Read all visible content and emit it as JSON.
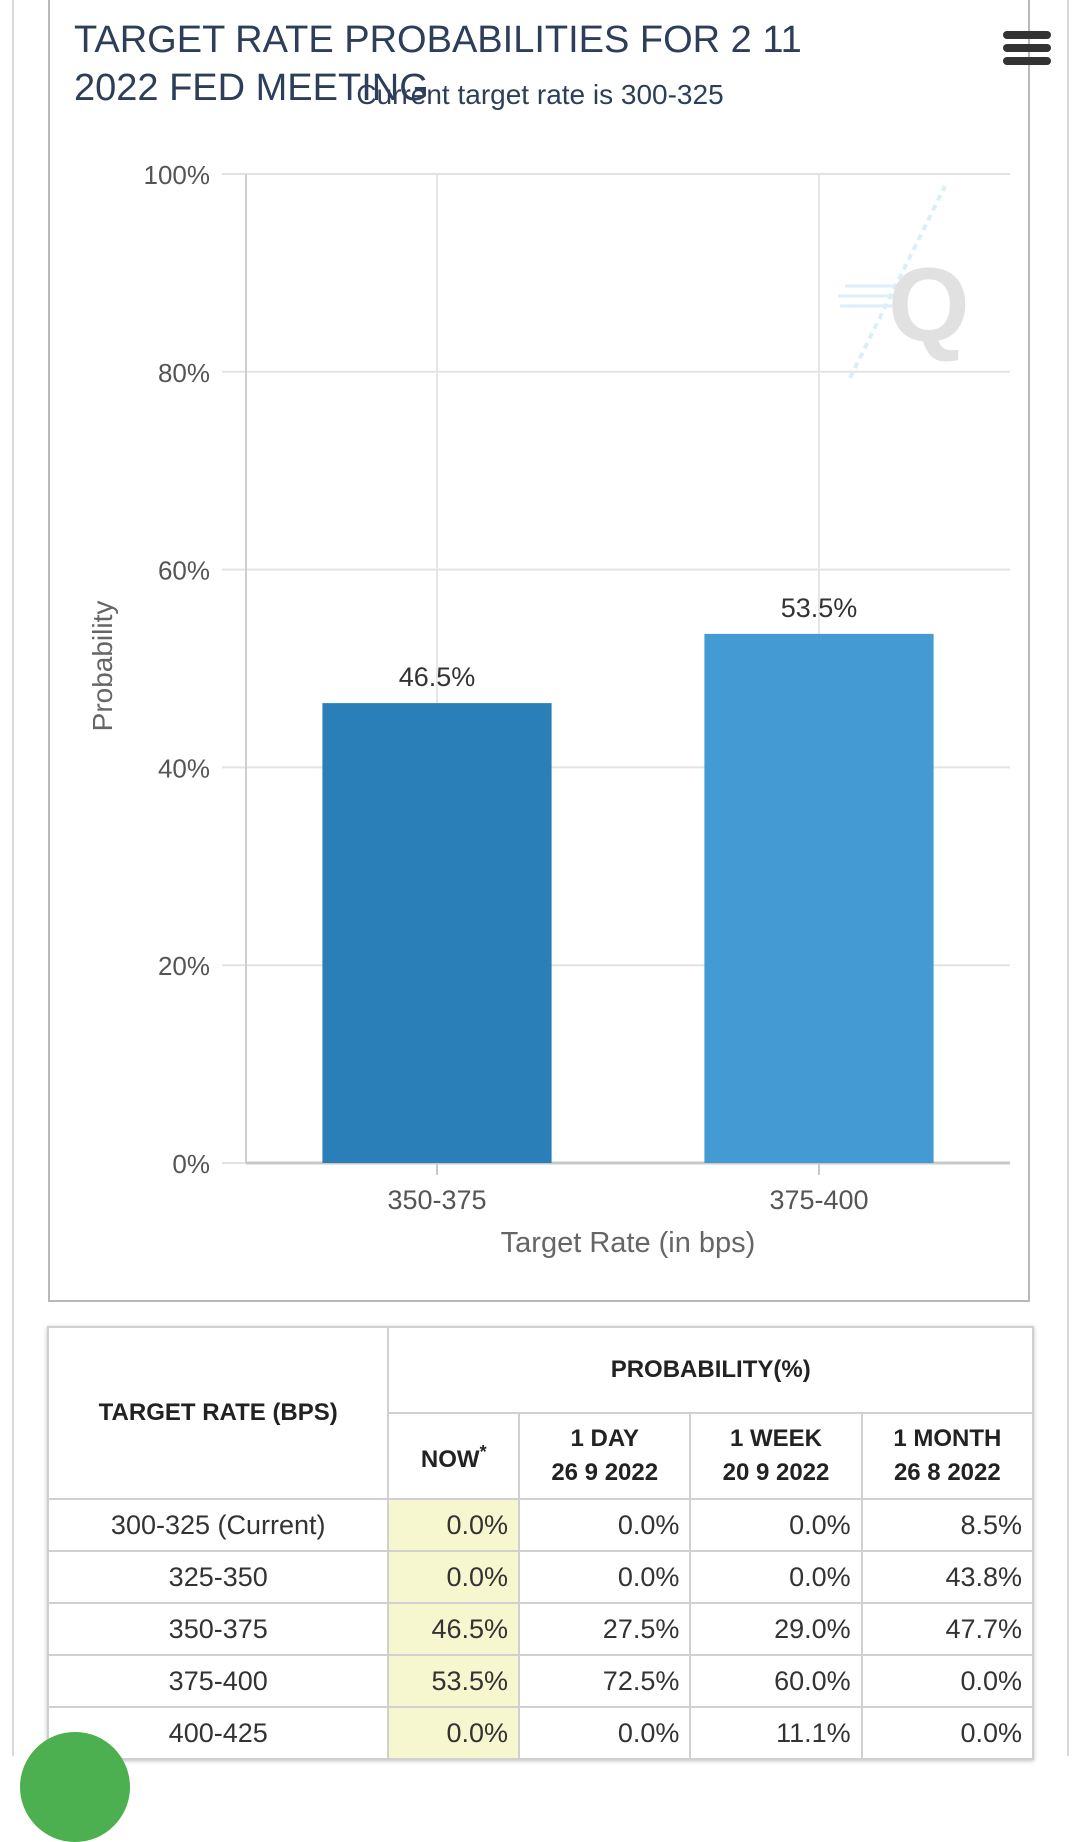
{
  "chart_data": {
    "type": "bar",
    "title": "TARGET RATE PROBABILITIES FOR 2 11 2022 FED MEETING",
    "title_lines": [
      "TARGET RATE PROBABILITIES FOR 2 11",
      "2022 FED MEETING"
    ],
    "subtitle": "Current target rate is 300-325",
    "xlabel": "Target Rate (in bps)",
    "ylabel": "Probability",
    "categories": [
      "350-375",
      "375-400"
    ],
    "values": [
      46.5,
      53.5
    ],
    "data_labels": [
      "46.5%",
      "53.5%"
    ],
    "yticks": [
      "0%",
      "20%",
      "40%",
      "60%",
      "80%",
      "100%"
    ],
    "ylim": [
      0,
      100
    ],
    "grid": true,
    "bar_colors": [
      "#2a7fb9",
      "#449bd3"
    ]
  },
  "table": {
    "header_target_rate": "TARGET RATE (BPS)",
    "header_probability": "PROBABILITY(%)",
    "columns": [
      {
        "line1": "NOW",
        "line2": "",
        "sup": "*"
      },
      {
        "line1": "1 DAY",
        "line2": "26 9 2022"
      },
      {
        "line1": "1 WEEK",
        "line2": "20 9 2022"
      },
      {
        "line1": "1 MONTH",
        "line2": "26 8 2022"
      }
    ],
    "rows": [
      {
        "rate": "300-325 (Current)",
        "values": [
          "0.0%",
          "0.0%",
          "0.0%",
          "8.5%"
        ]
      },
      {
        "rate": "325-350",
        "values": [
          "0.0%",
          "0.0%",
          "0.0%",
          "43.8%"
        ]
      },
      {
        "rate": "350-375",
        "values": [
          "46.5%",
          "27.5%",
          "29.0%",
          "47.7%"
        ]
      },
      {
        "rate": "375-400",
        "values": [
          "53.5%",
          "72.5%",
          "60.0%",
          "0.0%"
        ]
      },
      {
        "rate": "400-425",
        "values": [
          "0.0%",
          "0.0%",
          "11.1%",
          "0.0%"
        ]
      }
    ]
  },
  "icons": {
    "menu": "hamburger-menu-icon",
    "watermark": "q-watermark-logo"
  }
}
